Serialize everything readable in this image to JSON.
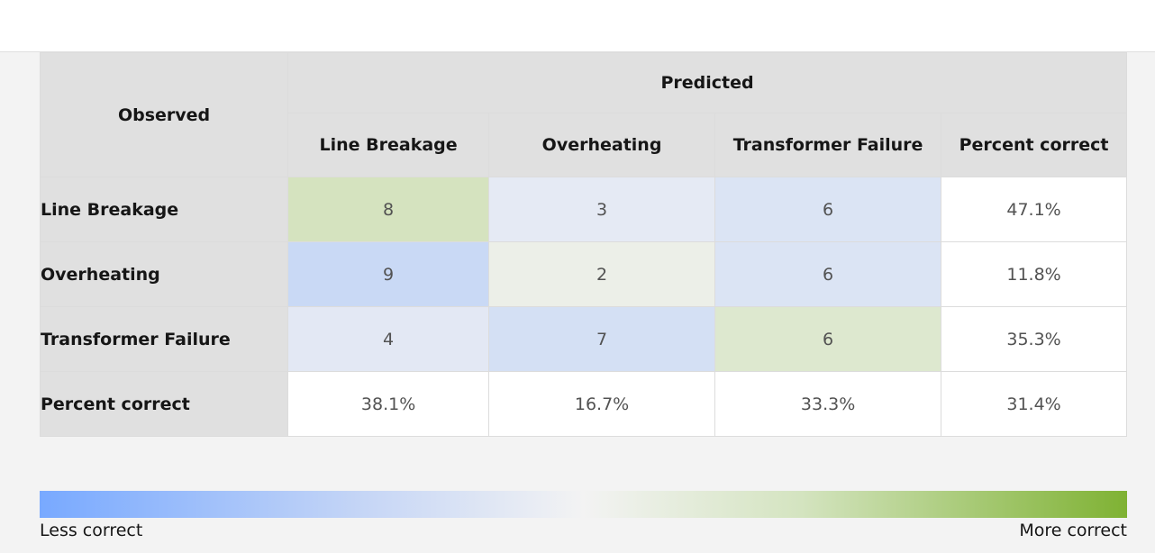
{
  "table": {
    "observed_header": "Observed",
    "predicted_header": "Predicted",
    "columns": [
      "Line Breakage",
      "Overheating",
      "Transformer Failure",
      "Percent correct"
    ],
    "rows": [
      {
        "label": "Line Breakage",
        "values": [
          "8",
          "3",
          "6"
        ],
        "percent": "47.1%",
        "colors": [
          "#d5e3bf",
          "#e5eaf4",
          "#dbe4f4"
        ]
      },
      {
        "label": "Overheating",
        "values": [
          "9",
          "2",
          "6"
        ],
        "percent": "11.8%",
        "colors": [
          "#c9d9f5",
          "#ecefe8",
          "#dbe4f4"
        ]
      },
      {
        "label": "Transformer Failure",
        "values": [
          "4",
          "7",
          "6"
        ],
        "percent": "35.3%",
        "colors": [
          "#e3e8f4",
          "#d4e0f4",
          "#dde8cf"
        ]
      }
    ],
    "footer": {
      "label": "Percent correct",
      "values": [
        "38.1%",
        "16.7%",
        "33.3%",
        "31.4%"
      ]
    }
  },
  "legend": {
    "left_label": "Less correct",
    "right_label": "More correct",
    "low_color": "#78a9ff",
    "high_color": "#7fb233"
  }
}
